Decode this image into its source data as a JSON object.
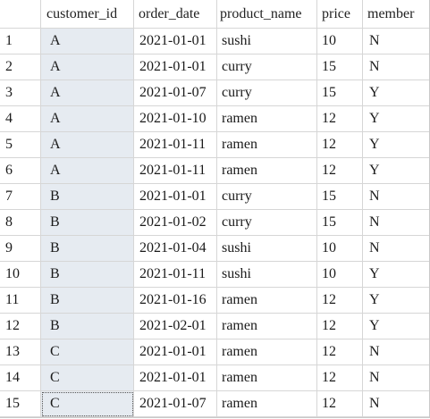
{
  "columns": [
    "customer_id",
    "order_date",
    "product_name",
    "price",
    "member"
  ],
  "rows": [
    {
      "rn": "1",
      "customer_id": "A",
      "order_date": "2021-01-01",
      "product_name": "sushi",
      "price": "10",
      "member": "N"
    },
    {
      "rn": "2",
      "customer_id": "A",
      "order_date": "2021-01-01",
      "product_name": "curry",
      "price": "15",
      "member": "N"
    },
    {
      "rn": "3",
      "customer_id": "A",
      "order_date": "2021-01-07",
      "product_name": "curry",
      "price": "15",
      "member": "Y"
    },
    {
      "rn": "4",
      "customer_id": "A",
      "order_date": "2021-01-10",
      "product_name": "ramen",
      "price": "12",
      "member": "Y"
    },
    {
      "rn": "5",
      "customer_id": "A",
      "order_date": "2021-01-11",
      "product_name": "ramen",
      "price": "12",
      "member": "Y"
    },
    {
      "rn": "6",
      "customer_id": "A",
      "order_date": "2021-01-11",
      "product_name": "ramen",
      "price": "12",
      "member": "Y"
    },
    {
      "rn": "7",
      "customer_id": "B",
      "order_date": "2021-01-01",
      "product_name": "curry",
      "price": "15",
      "member": "N"
    },
    {
      "rn": "8",
      "customer_id": "B",
      "order_date": "2021-01-02",
      "product_name": "curry",
      "price": "15",
      "member": "N"
    },
    {
      "rn": "9",
      "customer_id": "B",
      "order_date": "2021-01-04",
      "product_name": "sushi",
      "price": "10",
      "member": "N"
    },
    {
      "rn": "10",
      "customer_id": "B",
      "order_date": "2021-01-11",
      "product_name": "sushi",
      "price": "10",
      "member": "Y"
    },
    {
      "rn": "11",
      "customer_id": "B",
      "order_date": "2021-01-16",
      "product_name": "ramen",
      "price": "12",
      "member": "Y"
    },
    {
      "rn": "12",
      "customer_id": "B",
      "order_date": "2021-02-01",
      "product_name": "ramen",
      "price": "12",
      "member": "Y"
    },
    {
      "rn": "13",
      "customer_id": "C",
      "order_date": "2021-01-01",
      "product_name": "ramen",
      "price": "12",
      "member": "N"
    },
    {
      "rn": "14",
      "customer_id": "C",
      "order_date": "2021-01-01",
      "product_name": "ramen",
      "price": "12",
      "member": "N"
    },
    {
      "rn": "15",
      "customer_id": "C",
      "order_date": "2021-01-07",
      "product_name": "ramen",
      "price": "12",
      "member": "N"
    }
  ],
  "colors": {
    "selected_column_bg": "#e6ebf1",
    "gridline": "#d6d6d6"
  }
}
